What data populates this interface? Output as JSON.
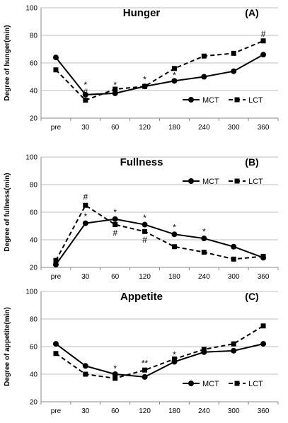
{
  "chart_data": [
    {
      "type": "line",
      "title": "Hunger",
      "panel": "(A)",
      "ylabel": "Degree of hunger(min)",
      "categories": [
        "pre",
        "30",
        "60",
        "120",
        "180",
        "240",
        "300",
        "360"
      ],
      "ylim": [
        20,
        100
      ],
      "yticks": [
        20,
        40,
        60,
        80,
        100
      ],
      "grid": true,
      "legend_position": "lower-right",
      "series": [
        {
          "name": "MCT",
          "marker": "circle",
          "line": "solid",
          "values": [
            64,
            37,
            38,
            43,
            47,
            50,
            54,
            66
          ]
        },
        {
          "name": "LCT",
          "marker": "square",
          "line": "dashed",
          "values": [
            55,
            33,
            41,
            43,
            56,
            65,
            67,
            76
          ]
        }
      ],
      "annotations": [
        {
          "category": "30",
          "text": "*",
          "y": 44
        },
        {
          "category": "30",
          "text": "#",
          "y": 39
        },
        {
          "category": "60",
          "text": "*",
          "y": 44
        },
        {
          "category": "120",
          "text": "*",
          "y": 48
        },
        {
          "category": "180",
          "text": "*",
          "y": 51
        },
        {
          "category": "360",
          "text": "#",
          "y": 81
        }
      ]
    },
    {
      "type": "line",
      "title": "Fullness",
      "panel": "(B)",
      "ylabel": "Degree of fullness(min)",
      "categories": [
        "pre",
        "30",
        "60",
        "120",
        "180",
        "240",
        "300",
        "360"
      ],
      "ylim": [
        20,
        100
      ],
      "yticks": [
        20,
        40,
        60,
        80,
        100
      ],
      "grid": true,
      "legend_position": "upper-right",
      "series": [
        {
          "name": "MCT",
          "marker": "circle",
          "line": "solid",
          "values": [
            22,
            52,
            55,
            51,
            44,
            41,
            35,
            27
          ]
        },
        {
          "name": "LCT",
          "marker": "square",
          "line": "dashed",
          "values": [
            25,
            65,
            51,
            46,
            35,
            31,
            26,
            28
          ]
        }
      ],
      "annotations": [
        {
          "category": "30",
          "text": "#",
          "y": 71
        },
        {
          "category": "30",
          "text": "*",
          "y": 57
        },
        {
          "category": "60",
          "text": "*",
          "y": 60
        },
        {
          "category": "60",
          "text": "#",
          "y": 45
        },
        {
          "category": "120",
          "text": "*",
          "y": 56
        },
        {
          "category": "120",
          "text": "#",
          "y": 40
        },
        {
          "category": "180",
          "text": "*",
          "y": 49
        },
        {
          "category": "240",
          "text": "*",
          "y": 46
        }
      ]
    },
    {
      "type": "line",
      "title": "Appetite",
      "panel": "(C)",
      "ylabel": "Degree of appetite(min)",
      "categories": [
        "pre",
        "30",
        "60",
        "120",
        "180",
        "240",
        "300",
        "360"
      ],
      "ylim": [
        20,
        100
      ],
      "yticks": [
        20,
        40,
        60,
        80,
        100
      ],
      "grid": true,
      "legend_position": "lower-right",
      "series": [
        {
          "name": "MCT",
          "marker": "circle",
          "line": "solid",
          "values": [
            62,
            46,
            40,
            38,
            49,
            56,
            57,
            62
          ]
        },
        {
          "name": "LCT",
          "marker": "square",
          "line": "dashed",
          "values": [
            55,
            40,
            37,
            43,
            51,
            58,
            62,
            75
          ]
        }
      ],
      "annotations": [
        {
          "category": "60",
          "text": "*",
          "y": 44
        },
        {
          "category": "120",
          "text": "**",
          "y": 48
        },
        {
          "category": "180",
          "text": "*",
          "y": 54
        }
      ]
    }
  ]
}
